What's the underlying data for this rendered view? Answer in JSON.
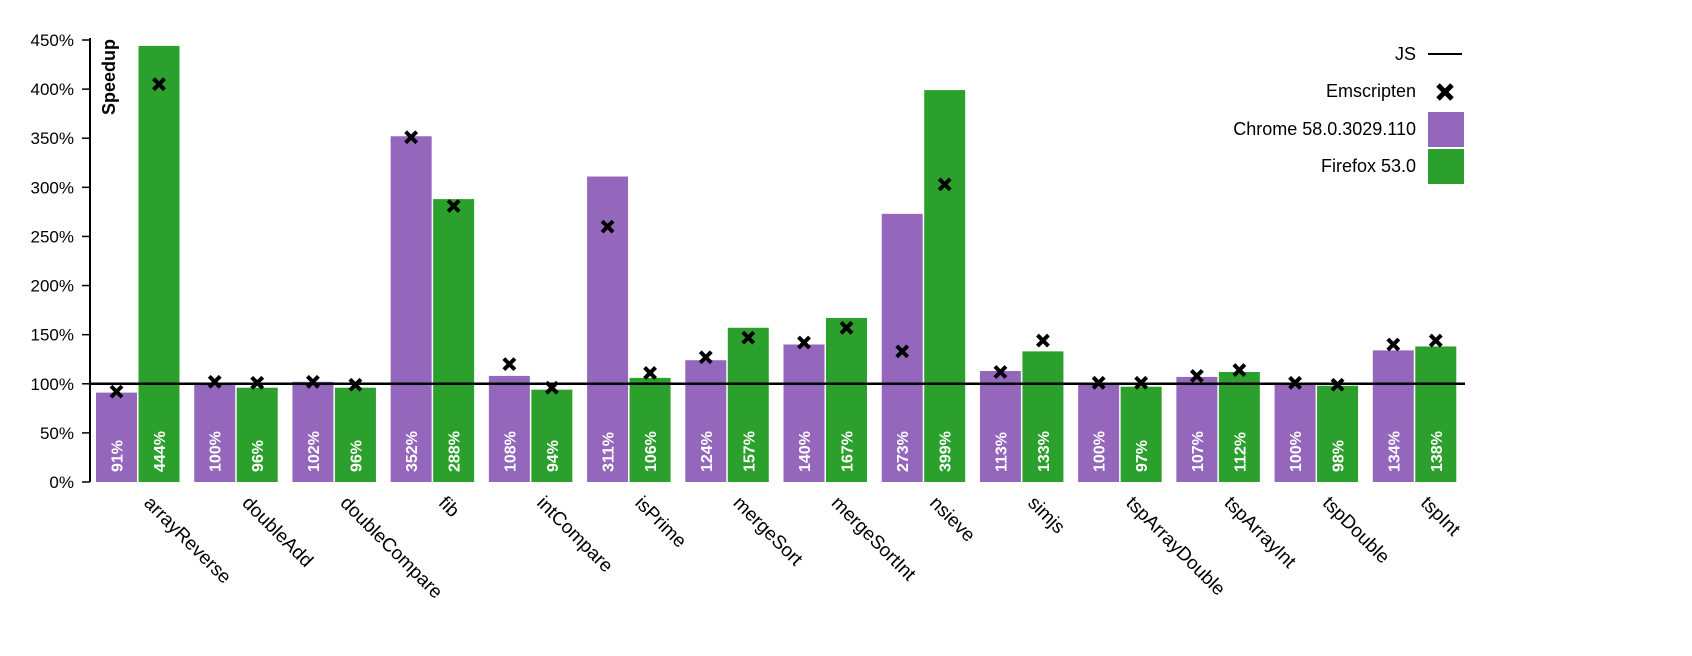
{
  "chart_data": {
    "type": "bar",
    "ylabel": "Speedup",
    "ylim": [
      0,
      450
    ],
    "yticks": [
      "0%",
      "50%",
      "100%",
      "150%",
      "200%",
      "250%",
      "300%",
      "350%",
      "400%",
      "450%"
    ],
    "yticks_values": [
      0,
      50,
      100,
      150,
      200,
      250,
      300,
      350,
      400,
      450
    ],
    "reference_line": {
      "name": "JS",
      "value": 100
    },
    "categories": [
      "arrayReverse",
      "doubleAdd",
      "doubleCompare",
      "fib",
      "intCompare",
      "isPrime",
      "mergeSort",
      "mergeSortInt",
      "nsieve",
      "simjs",
      "tspArrayDouble",
      "tspArrayInt",
      "tspDouble",
      "tspInt"
    ],
    "series": [
      {
        "name": "Chrome 58.0.3029.110",
        "color": "#9467bd",
        "values": [
          91,
          100,
          102,
          352,
          108,
          311,
          124,
          140,
          273,
          113,
          100,
          107,
          100,
          134
        ],
        "labels": [
          "91%",
          "100%",
          "102%",
          "352%",
          "108%",
          "311%",
          "124%",
          "140%",
          "273%",
          "113%",
          "100%",
          "107%",
          "100%",
          "134%"
        ],
        "emscripten": [
          92,
          102,
          102,
          351,
          120,
          260,
          127,
          142,
          133,
          112,
          101,
          108,
          101,
          140
        ]
      },
      {
        "name": "Firefox 53.0",
        "color": "#2ca02c",
        "values": [
          444,
          96,
          96,
          288,
          94,
          106,
          157,
          167,
          399,
          133,
          97,
          112,
          98,
          138
        ],
        "labels": [
          "444%",
          "96%",
          "96%",
          "288%",
          "94%",
          "106%",
          "157%",
          "167%",
          "399%",
          "133%",
          "97%",
          "112%",
          "98%",
          "138%"
        ],
        "emscripten": [
          405,
          101,
          99,
          281,
          96,
          111,
          147,
          157,
          303,
          144,
          101,
          114,
          99,
          144
        ]
      }
    ],
    "legend": {
      "position": "top-right",
      "entries": [
        "JS",
        "Emscripten",
        "Chrome 58.0.3029.110",
        "Firefox 53.0"
      ]
    }
  }
}
